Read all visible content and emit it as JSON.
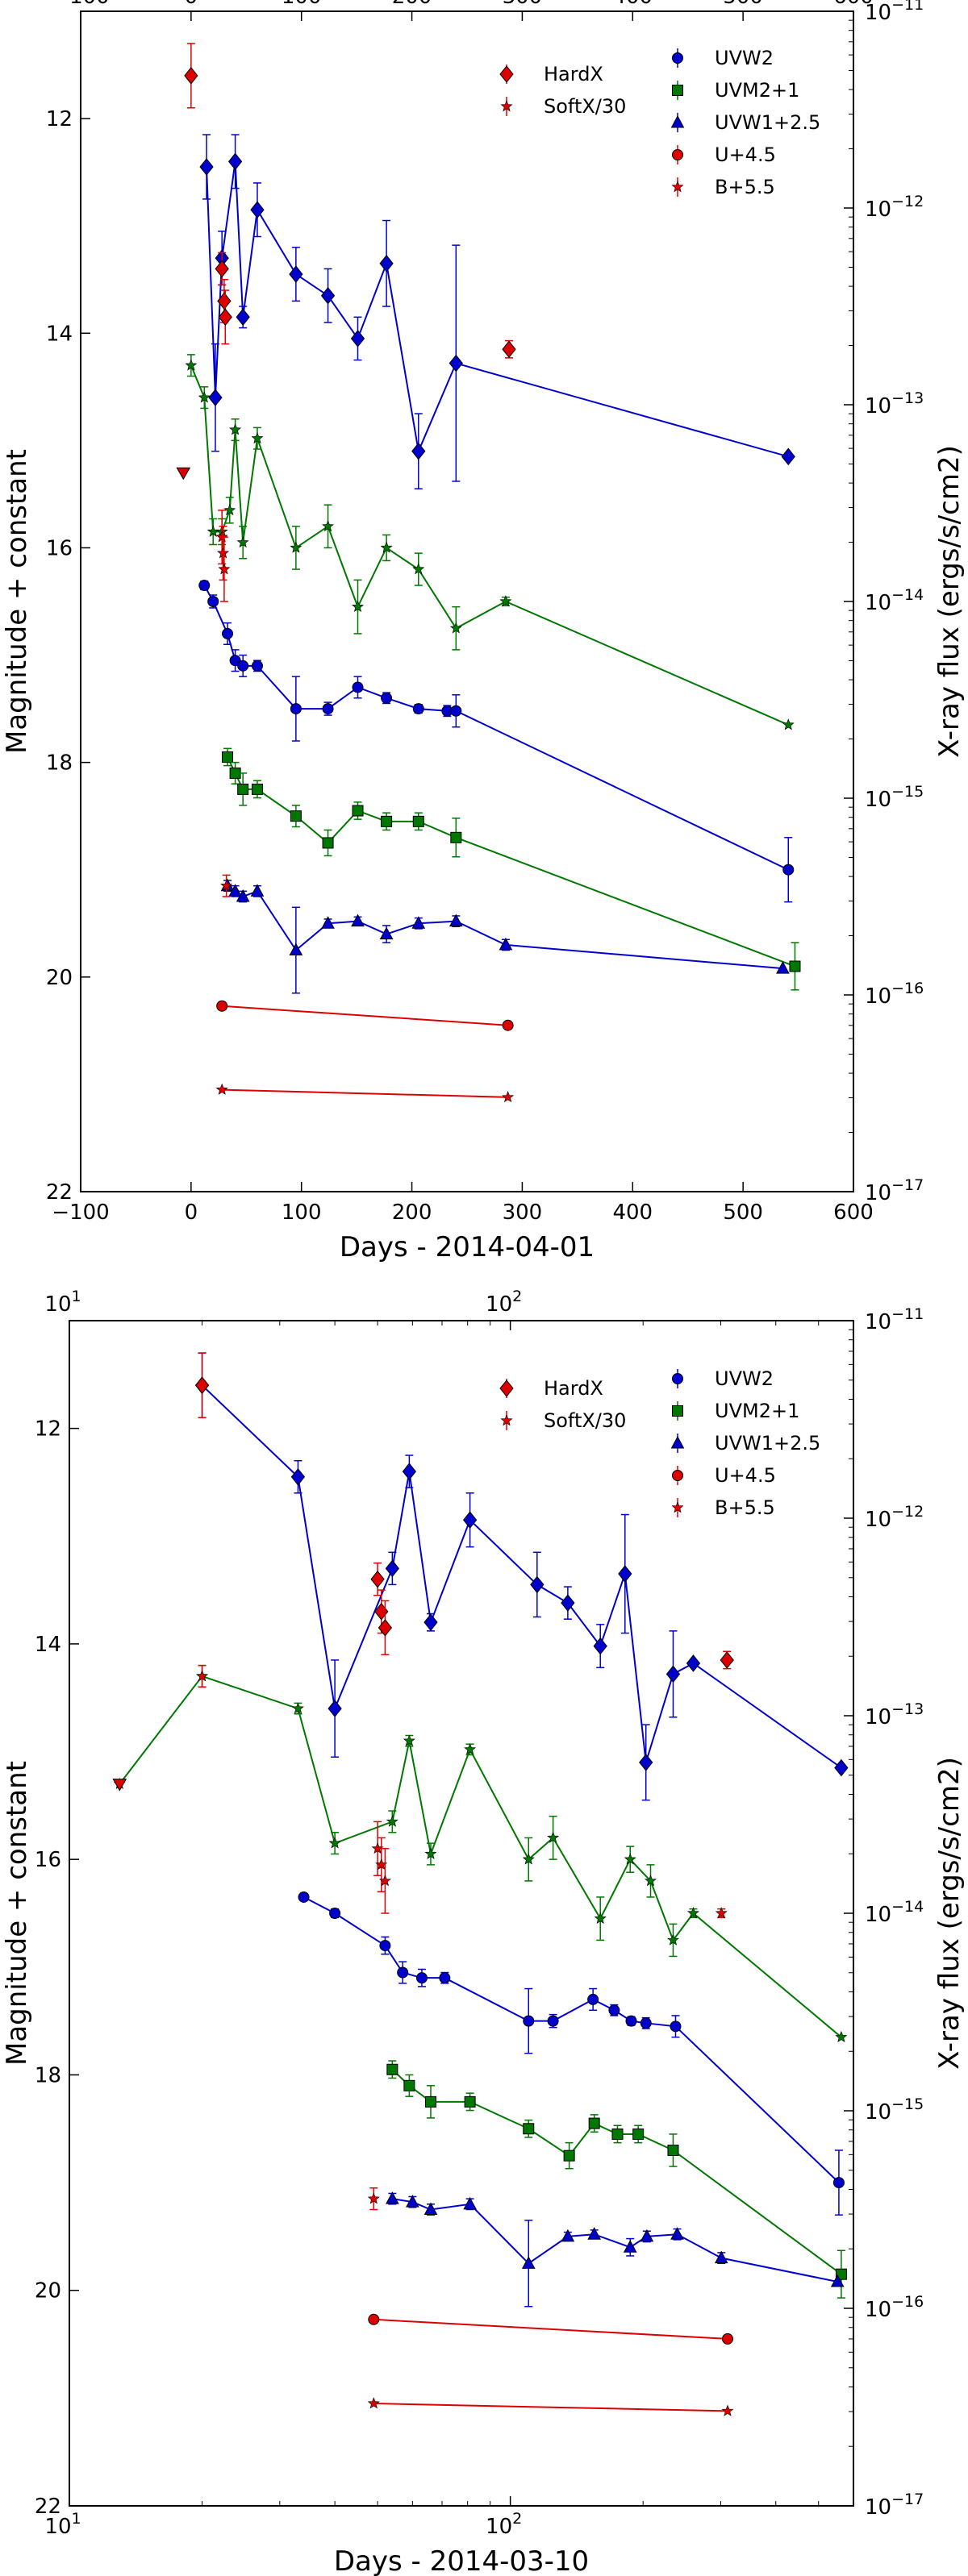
{
  "chart_data": [
    {
      "type": "line",
      "panel": "top",
      "xlabel": "Days - 2014-04-01",
      "ylabel_left": "Magnitude + constant",
      "ylabel_right": "X-ray flux (ergs/s/cm2)",
      "xlim": [
        -100,
        600
      ],
      "x_scale": "linear",
      "ylim_left": [
        22,
        11
      ],
      "ylim_right": [
        1e-17,
        1e-11
      ],
      "y_right_scale": "log",
      "x_ticks": [
        -100,
        0,
        100,
        200,
        300,
        400,
        500,
        600
      ],
      "x_tick_labels": [
        "−100",
        "0",
        "100",
        "200",
        "300",
        "400",
        "500",
        "600"
      ],
      "y_left_ticks": [
        12,
        14,
        16,
        18,
        20,
        22
      ],
      "y_left_tick_labels": [
        "12",
        "14",
        "16",
        "18",
        "20",
        "22"
      ],
      "y_right_ticks": [
        -11,
        -12,
        -13,
        -14,
        -15,
        -16,
        -17
      ],
      "y_right_tick_labels": [
        "10-11",
        "10-12",
        "10-13",
        "10-14",
        "10-15",
        "10-16",
        "10-17"
      ],
      "legend_left": [
        "HardX",
        "SoftX/30"
      ],
      "legend_right": [
        "UVW2",
        "UVM2+1",
        "UVW1+2.5",
        "U+4.5",
        "B+5.5"
      ],
      "series": [
        {
          "name": "UVW2",
          "axis": "left",
          "color": "#0000cc",
          "marker": "diamond",
          "line": true,
          "x": [
            14,
            22,
            28,
            40,
            47,
            60,
            95,
            124,
            151,
            177,
            206,
            240,
            541
          ],
          "y": [
            12.45,
            14.6,
            13.3,
            12.4,
            13.85,
            12.85,
            13.45,
            13.65,
            14.05,
            13.35,
            15.1,
            14.28,
            15.15
          ],
          "err": [
            0.3,
            0.5,
            0.25,
            0.25,
            0.1,
            0.25,
            0.25,
            0.25,
            0.2,
            0.4,
            0.35,
            1.1,
            0
          ]
        },
        {
          "name": "UVM2+1",
          "axis": "left",
          "color": "#007700",
          "marker": "star",
          "line": true,
          "x": [
            0,
            12,
            20,
            28,
            35,
            40,
            47,
            60,
            95,
            124,
            151,
            177,
            206,
            240,
            285,
            541
          ],
          "y": [
            14.3,
            14.6,
            15.85,
            15.85,
            15.65,
            14.9,
            15.95,
            14.98,
            16.0,
            15.8,
            16.55,
            16.0,
            16.2,
            16.75,
            16.5,
            17.65
          ],
          "err": [
            0.1,
            0.1,
            0.12,
            0.12,
            0.12,
            0.1,
            0.15,
            0.1,
            0.2,
            0.2,
            0.25,
            0.12,
            0.15,
            0.2,
            0.04,
            0
          ]
        },
        {
          "name": "UVW1+2.5",
          "axis": "left",
          "color": "#0000cc",
          "marker": "circle",
          "line": true,
          "x": [
            12,
            20,
            33,
            40,
            47,
            60,
            95,
            124,
            151,
            177,
            206,
            232,
            240,
            541
          ],
          "y": [
            16.35,
            16.5,
            16.8,
            17.05,
            17.1,
            17.1,
            17.5,
            17.5,
            17.3,
            17.4,
            17.5,
            17.52,
            17.52,
            19.0
          ],
          "err": [
            0.04,
            0.06,
            0.1,
            0.1,
            0.1,
            0.05,
            0.3,
            0.06,
            0.1,
            0.05,
            0.04,
            0.05,
            0.15,
            0.3
          ]
        },
        {
          "name": "U+4.5",
          "axis": "left",
          "color": "#007700",
          "marker": "square",
          "line": true,
          "x": [
            33,
            40,
            47,
            60,
            95,
            124,
            151,
            177,
            206,
            240,
            547
          ],
          "y": [
            17.95,
            18.1,
            18.25,
            18.25,
            18.5,
            18.75,
            18.45,
            18.55,
            18.55,
            18.7,
            19.9
          ],
          "err": [
            0.08,
            0.1,
            0.15,
            0.08,
            0.1,
            0.12,
            0.08,
            0.08,
            0.08,
            0.18,
            0.22
          ]
        },
        {
          "name": "B+5.5",
          "axis": "left",
          "color": "#0000cc",
          "marker": "triangle",
          "line": true,
          "x": [
            33,
            40,
            47,
            60,
            95,
            124,
            151,
            177,
            206,
            240,
            285,
            536
          ],
          "y": [
            19.15,
            19.2,
            19.25,
            19.2,
            19.75,
            19.5,
            19.48,
            19.6,
            19.5,
            19.48,
            19.7,
            19.92
          ],
          "err": [
            0.05,
            0.05,
            0.05,
            0.05,
            0.4,
            0.04,
            0.04,
            0.08,
            0.05,
            0.05,
            0.05,
            0
          ]
        },
        {
          "name": "U+4.5 (red)",
          "axis": "left",
          "color": "#dd0000",
          "marker": "circle",
          "line": true,
          "x": [
            28,
            287
          ],
          "y": [
            20.27,
            20.45
          ],
          "err": [
            0,
            0
          ]
        },
        {
          "name": "B+5.5 (red)",
          "axis": "left",
          "color": "#dd0000",
          "marker": "star",
          "line": true,
          "x": [
            28,
            287
          ],
          "y": [
            21.05,
            21.12
          ],
          "err": [
            0,
            0
          ]
        },
        {
          "name": "HardX",
          "axis": "left",
          "color": "#dd0000",
          "marker": "diamond",
          "line": false,
          "x": [
            0,
            28,
            30,
            31,
            288
          ],
          "y": [
            11.6,
            13.4,
            13.7,
            13.85,
            14.15
          ],
          "err": [
            0.3,
            0.15,
            0.2,
            0.25,
            0.08
          ]
        },
        {
          "name": "SoftX/30",
          "axis": "left",
          "color": "#dd0000",
          "marker": "star",
          "line": false,
          "x": [
            28,
            29,
            30,
            32
          ],
          "y": [
            15.9,
            16.05,
            16.2,
            19.15
          ],
          "err": [
            0.25,
            0.25,
            0.3,
            0.1
          ]
        },
        {
          "name": "upper-limit",
          "axis": "left",
          "color": "#dd0000",
          "marker": "triangle-down",
          "line": false,
          "x": [
            -7
          ],
          "y": [
            15.3
          ],
          "err": [
            0
          ]
        }
      ]
    },
    {
      "type": "line",
      "panel": "bottom",
      "xlabel": "Days - 2014-03-10",
      "ylabel_left": "Magnitude + constant",
      "ylabel_right": "X-ray flux (ergs/s/cm2)",
      "xlim": [
        10,
        600
      ],
      "x_scale": "log",
      "ylim_left": [
        22,
        11
      ],
      "ylim_right": [
        1e-17,
        1e-11
      ],
      "y_right_scale": "log",
      "x_ticks": [
        10,
        100
      ],
      "x_tick_labels": [
        "101",
        "102"
      ],
      "y_left_ticks": [
        12,
        14,
        16,
        18,
        20,
        22
      ],
      "y_left_tick_labels": [
        "12",
        "14",
        "16",
        "18",
        "20",
        "22"
      ],
      "y_right_ticks": [
        -11,
        -12,
        -13,
        -14,
        -15,
        -16,
        -17
      ],
      "y_right_tick_labels": [
        "10-11",
        "10-12",
        "10-13",
        "10-14",
        "10-15",
        "10-16",
        "10-17"
      ],
      "legend_left": [
        "HardX",
        "SoftX/30"
      ],
      "legend_right": [
        "UVW2",
        "UVM2+1",
        "UVW1+2.5",
        "U+4.5",
        "B+5.5"
      ],
      "series": [
        {
          "name": "UVW2",
          "axis": "left",
          "color": "#0000cc",
          "marker": "diamond",
          "line": true,
          "x": [
            20,
            33,
            40,
            54,
            59,
            66,
            81,
            115,
            135,
            160,
            182,
            203,
            234,
            260,
            563
          ],
          "y": [
            11.6,
            12.45,
            14.6,
            13.3,
            12.4,
            13.8,
            12.85,
            13.45,
            13.62,
            14.02,
            13.35,
            15.1,
            14.28,
            14.18,
            15.15
          ],
          "err": [
            0.3,
            0.15,
            0.45,
            0.15,
            0.15,
            0.08,
            0.25,
            0.3,
            0.15,
            0.2,
            0.55,
            0.35,
            0.4,
            0,
            0
          ]
        },
        {
          "name": "UVM2+1",
          "axis": "left",
          "color": "#007700",
          "marker": "star",
          "line": true,
          "x": [
            13,
            20,
            33,
            40,
            54,
            59,
            66,
            81,
            110,
            125,
            160,
            187,
            208,
            234,
            260,
            563
          ],
          "y": [
            15.3,
            14.3,
            14.6,
            15.85,
            15.65,
            14.9,
            15.95,
            14.98,
            16.0,
            15.8,
            16.55,
            16.0,
            16.2,
            16.75,
            16.5,
            17.65
          ],
          "err": [
            0,
            0.1,
            0.05,
            0.1,
            0.1,
            0.05,
            0.1,
            0.05,
            0.2,
            0.2,
            0.2,
            0.12,
            0.15,
            0.15,
            0.04,
            0
          ]
        },
        {
          "name": "UVW1+2.5",
          "axis": "left",
          "color": "#0000cc",
          "marker": "circle",
          "line": true,
          "x": [
            34,
            40,
            52,
            57,
            63,
            71,
            110,
            125,
            154,
            172,
            188,
            203,
            237,
            556
          ],
          "y": [
            16.35,
            16.5,
            16.8,
            17.05,
            17.1,
            17.1,
            17.5,
            17.5,
            17.3,
            17.4,
            17.5,
            17.52,
            17.55,
            19.0
          ],
          "err": [
            0.02,
            0.04,
            0.08,
            0.1,
            0.08,
            0.05,
            0.3,
            0.06,
            0.1,
            0.05,
            0.04,
            0.05,
            0.1,
            0.3
          ]
        },
        {
          "name": "U+4.5",
          "axis": "left",
          "color": "#007700",
          "marker": "square",
          "line": true,
          "x": [
            54,
            59,
            66,
            81,
            110,
            136,
            155,
            175,
            195,
            234,
            563
          ],
          "y": [
            17.95,
            18.1,
            18.25,
            18.25,
            18.5,
            18.75,
            18.45,
            18.55,
            18.55,
            18.7,
            19.85
          ],
          "err": [
            0.08,
            0.1,
            0.15,
            0.08,
            0.08,
            0.12,
            0.08,
            0.08,
            0.08,
            0.15,
            0.22
          ]
        },
        {
          "name": "B+5.5",
          "axis": "left",
          "color": "#0000cc",
          "marker": "triangle",
          "line": true,
          "x": [
            54,
            60,
            66,
            81,
            110,
            135,
            155,
            187,
            204,
            239,
            301,
            552
          ],
          "y": [
            19.15,
            19.18,
            19.25,
            19.2,
            19.75,
            19.5,
            19.48,
            19.6,
            19.5,
            19.48,
            19.7,
            19.92
          ],
          "err": [
            0.05,
            0.05,
            0.05,
            0.05,
            0.4,
            0.04,
            0.04,
            0.08,
            0.05,
            0.05,
            0.05,
            0
          ]
        },
        {
          "name": "U+4.5 (red)",
          "axis": "left",
          "color": "#dd0000",
          "marker": "circle",
          "line": true,
          "x": [
            49,
            311
          ],
          "y": [
            20.27,
            20.45
          ],
          "err": [
            0,
            0
          ]
        },
        {
          "name": "B+5.5 (red)",
          "axis": "left",
          "color": "#dd0000",
          "marker": "star",
          "line": true,
          "x": [
            49,
            311
          ],
          "y": [
            21.05,
            21.12
          ],
          "err": [
            0,
            0
          ]
        },
        {
          "name": "HardX",
          "axis": "left",
          "color": "#dd0000",
          "marker": "diamond",
          "line": false,
          "x": [
            20,
            50,
            51,
            52,
            310
          ],
          "y": [
            11.6,
            13.4,
            13.7,
            13.85,
            14.15
          ],
          "err": [
            0.3,
            0.15,
            0.2,
            0.25,
            0.08
          ]
        },
        {
          "name": "SoftX/30",
          "axis": "left",
          "color": "#dd0000",
          "marker": "star",
          "line": false,
          "x": [
            20,
            50,
            51,
            52,
            49,
            301
          ],
          "y": [
            14.3,
            15.9,
            16.05,
            16.2,
            19.15,
            16.5
          ],
          "err": [
            0.1,
            0.25,
            0.25,
            0.3,
            0.1,
            0.04
          ]
        },
        {
          "name": "upper-limit",
          "axis": "left",
          "color": "#dd0000",
          "marker": "triangle-down",
          "line": false,
          "x": [
            13
          ],
          "y": [
            15.3
          ],
          "err": [
            0
          ]
        }
      ]
    }
  ]
}
